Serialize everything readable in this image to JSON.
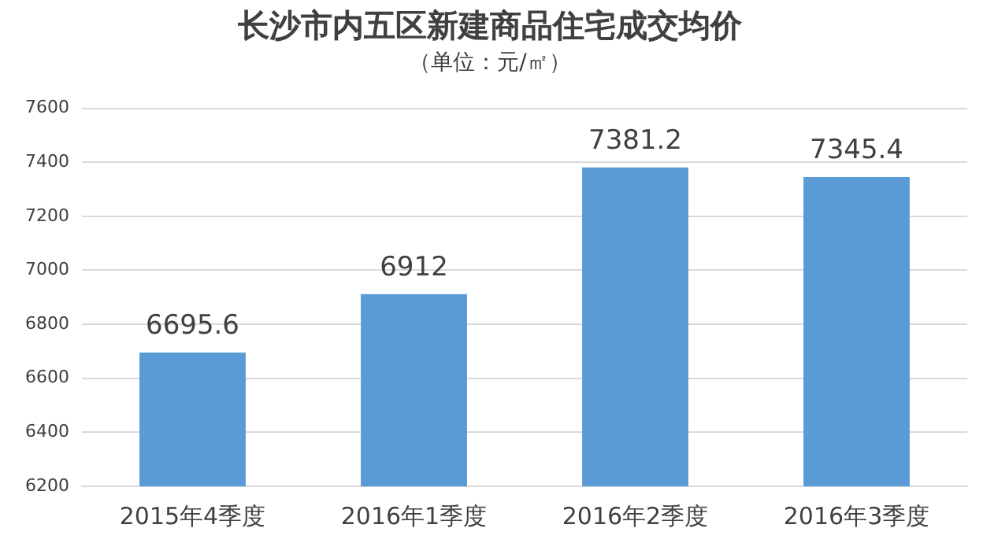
{
  "chart_data": {
    "type": "bar",
    "title": "长沙市内五区新建商品住宅成交均价",
    "subtitle": "（单位：元/㎡）",
    "categories": [
      "2015年4季度",
      "2016年1季度",
      "2016年2季度",
      "2016年3季度"
    ],
    "values": [
      6695.6,
      6912,
      7381.2,
      7345.4
    ],
    "color": "#5b9bd5",
    "ylim": [
      6200,
      7600
    ],
    "yticks": [
      6200,
      6400,
      6600,
      6800,
      7000,
      7200,
      7400,
      7600
    ],
    "grid": "y",
    "data_labels": true,
    "legend": false
  }
}
